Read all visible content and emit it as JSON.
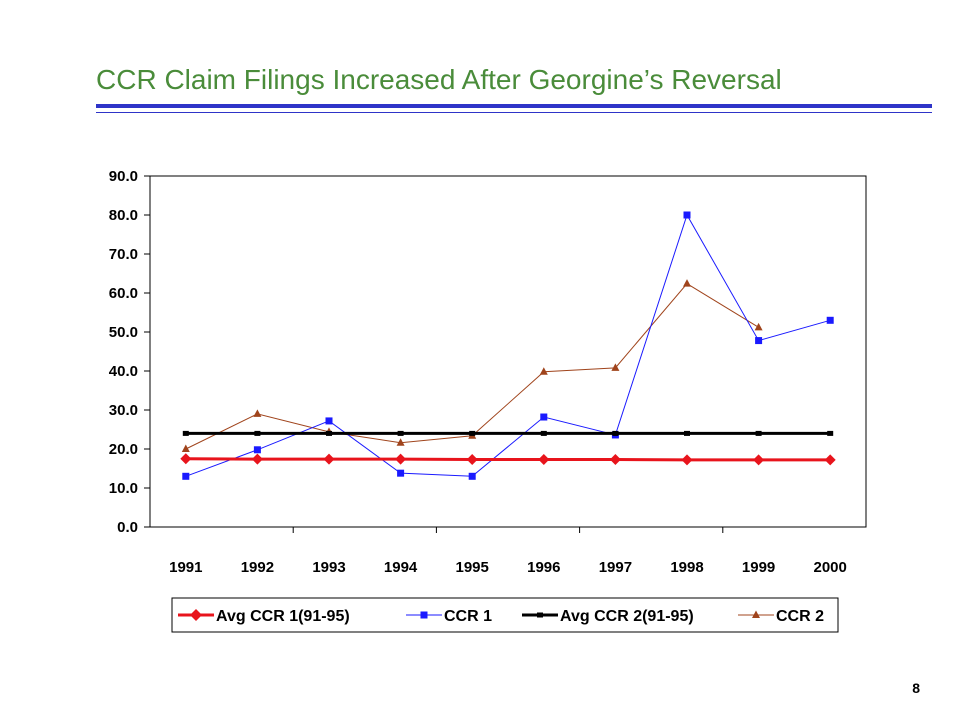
{
  "slide": {
    "title": "CCR Claim Filings Increased After Georgine’s Reversal",
    "page_number": "8"
  },
  "colors": {
    "title": "#4a8c3a",
    "rule": "#2e34c8",
    "avg_ccr1": "#e8141c",
    "ccr1": "#1a1aff",
    "avg_ccr2": "#000000",
    "ccr2": "#a0441c"
  },
  "chart_data": {
    "type": "line",
    "title": "",
    "xlabel": "",
    "ylabel": "",
    "categories": [
      "1991",
      "1992",
      "1993",
      "1994",
      "1995",
      "1996",
      "1997",
      "1998",
      "1999",
      "2000"
    ],
    "ylim": [
      0,
      90
    ],
    "yticks": [
      0,
      10,
      20,
      30,
      40,
      50,
      60,
      70,
      80,
      90
    ],
    "ytick_labels": [
      "0.0",
      "10.0",
      "20.0",
      "30.0",
      "40.0",
      "50.0",
      "60.0",
      "70.0",
      "80.0",
      "90.0"
    ],
    "grid": false,
    "legend_position": "bottom",
    "series": [
      {
        "name": "Avg CCR 1(91-95)",
        "color": "#e8141c",
        "marker": "diamond",
        "values": [
          17.5,
          17.4,
          17.4,
          17.4,
          17.3,
          17.3,
          17.3,
          17.2,
          17.2,
          17.2
        ]
      },
      {
        "name": "CCR 1",
        "color": "#1a1aff",
        "marker": "square",
        "values": [
          13.0,
          19.8,
          27.2,
          13.8,
          13.0,
          28.2,
          23.6,
          80.0,
          47.8,
          53.0
        ]
      },
      {
        "name": "Avg CCR 2(91-95)",
        "color": "#000000",
        "marker": "dash",
        "values": [
          24.0,
          24.0,
          24.0,
          24.0,
          24.0,
          24.0,
          24.0,
          24.0,
          24.0,
          24.0
        ]
      },
      {
        "name": "CCR 2",
        "color": "#a0441c",
        "marker": "triangle",
        "values": [
          20.0,
          29.0,
          24.4,
          21.6,
          23.4,
          39.8,
          40.8,
          62.4,
          51.2,
          null
        ]
      }
    ]
  }
}
